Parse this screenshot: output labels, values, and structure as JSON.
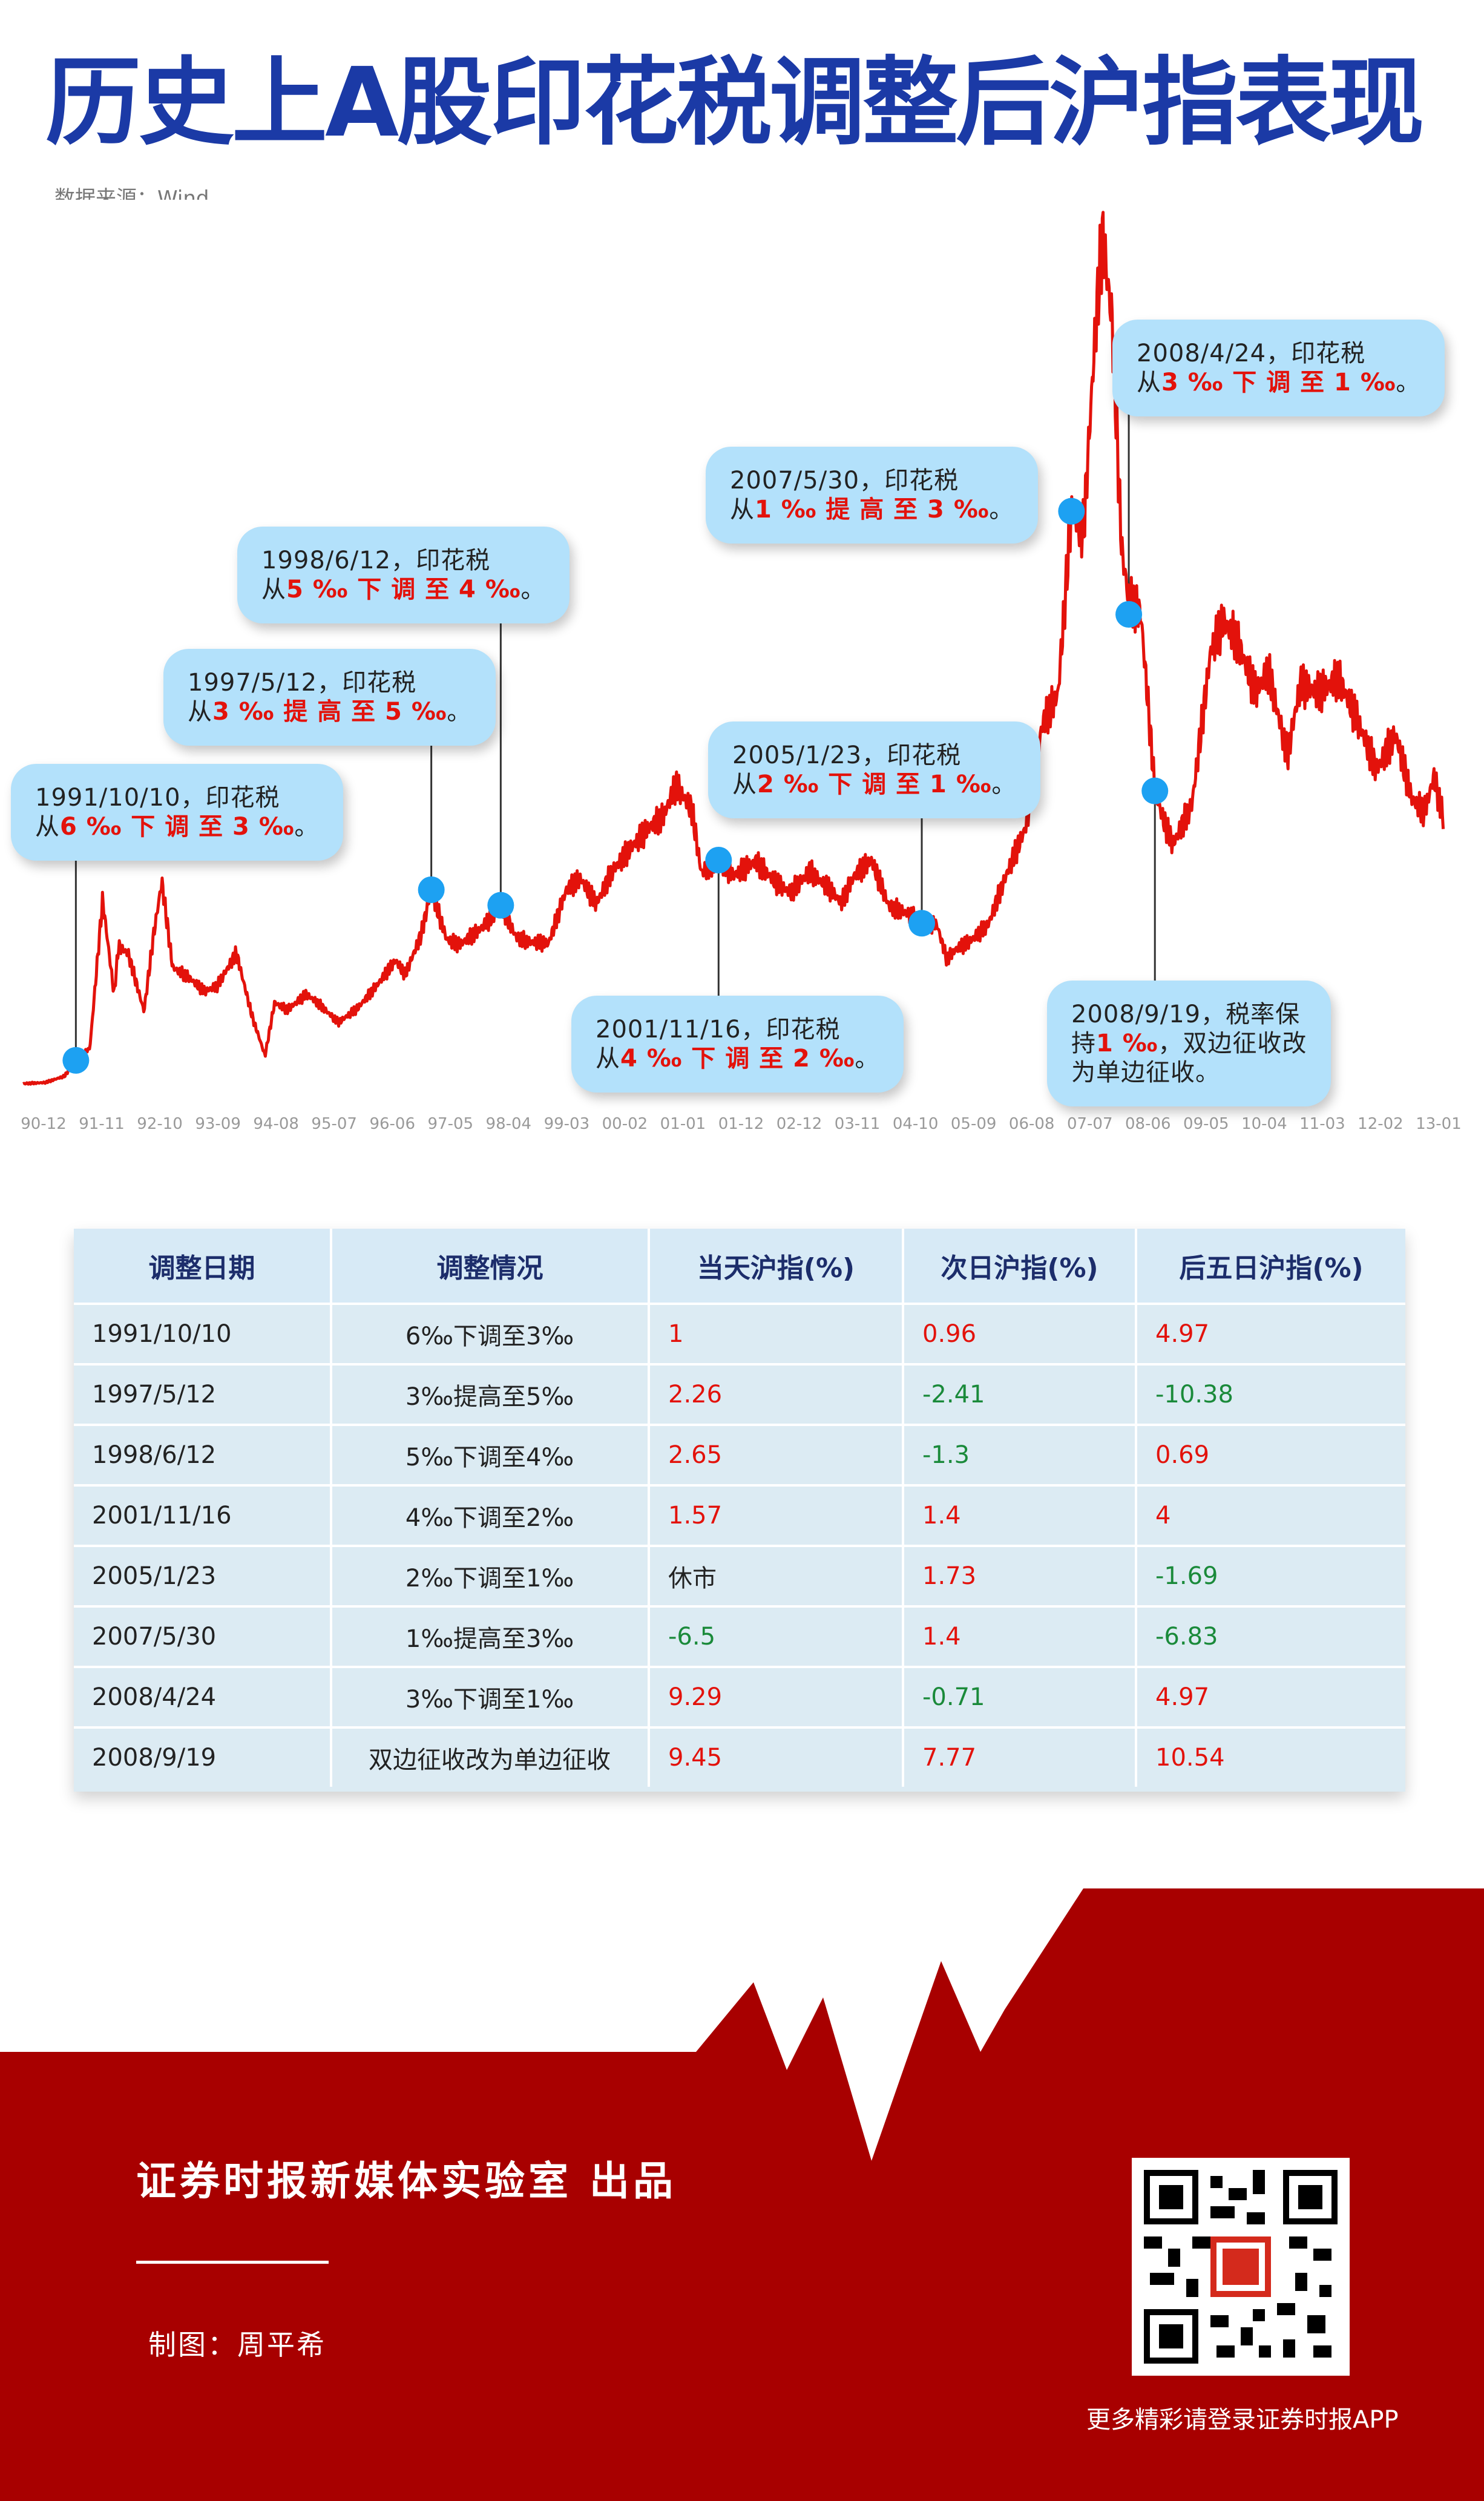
{
  "title": "历史上A股印花税调整后沪指表现",
  "source": "数据来源：Wind",
  "chart_data": {
    "type": "line",
    "xlabel": "",
    "ylabel": "",
    "x_tick_labels": [
      "90-12",
      "91-11",
      "92-10",
      "93-09",
      "94-08",
      "95-07",
      "96-06",
      "97-05",
      "98-04",
      "99-03",
      "00-02",
      "01-01",
      "01-12",
      "02-12",
      "03-11",
      "04-10",
      "05-09",
      "06-08",
      "07-07",
      "08-06",
      "09-05",
      "10-04",
      "11-03",
      "12-02",
      "13-01"
    ],
    "ylim": [
      0,
      6300
    ],
    "series": [
      {
        "x": [
          1990.95,
          1991.3,
          1991.6,
          1991.78,
          1992.0,
          1992.2,
          1992.38,
          1992.45,
          1992.6,
          1992.85,
          1993.0,
          1993.13,
          1993.3,
          1993.55,
          1993.8,
          1994.0,
          1994.3,
          1994.55,
          1994.75,
          1994.9,
          1995.1,
          1995.4,
          1995.6,
          1995.9,
          1996.2,
          1996.5,
          1996.8,
          1996.95,
          1997.2,
          1997.36,
          1997.6,
          1997.8,
          1998.1,
          1998.3,
          1998.45,
          1998.7,
          1998.9,
          1999.2,
          1999.48,
          1999.7,
          1999.95,
          2000.2,
          2000.5,
          2000.8,
          2001.0,
          2001.2,
          2001.45,
          2001.6,
          2001.87,
          2002.1,
          2002.45,
          2002.8,
          2003.0,
          2003.3,
          2003.6,
          2003.8,
          2004.0,
          2004.27,
          2004.55,
          2004.8,
          2005.05,
          2005.3,
          2005.45,
          2005.6,
          2005.8,
          2006.1,
          2006.4,
          2006.7,
          2006.95,
          2007.2,
          2007.41,
          2007.6,
          2007.79,
          2007.9,
          2008.05,
          2008.2,
          2008.31,
          2008.5,
          2008.72,
          2008.85,
          2009.0,
          2009.3,
          2009.6,
          2009.8,
          2010.0,
          2010.3,
          2010.5,
          2010.8,
          2011.0,
          2011.3,
          2011.6,
          2011.9,
          2012.2,
          2012.5,
          2012.75,
          2012.95,
          2013.1,
          2013.25
        ],
        "y": [
          127,
          135,
          180,
          292,
          380,
          1429,
          760,
          1100,
          1050,
          640,
          1180,
          1558,
          950,
          880,
          780,
          820,
          1050,
          600,
          325,
          700,
          650,
          760,
          690,
          560,
          660,
          820,
          1000,
          900,
          1180,
          1500,
          1150,
          1110,
          1210,
          1300,
          1390,
          1160,
          1130,
          1120,
          1500,
          1580,
          1400,
          1630,
          1800,
          1950,
          2020,
          2240,
          2070,
          1620,
          1710,
          1600,
          1700,
          1540,
          1480,
          1630,
          1510,
          1410,
          1600,
          1710,
          1380,
          1340,
          1275,
          1250,
          1010,
          1080,
          1130,
          1250,
          1620,
          1950,
          2670,
          2890,
          4180,
          4040,
          5500,
          6124,
          5520,
          3900,
          3560,
          3450,
          2200,
          2000,
          1820,
          2100,
          3200,
          3400,
          3277,
          2900,
          3050,
          2450,
          2950,
          2900,
          3000,
          2700,
          2350,
          2600,
          2150,
          2050,
          2300,
          2000
        ]
      }
    ],
    "events": [
      {
        "x": 1991.78,
        "y": 292
      },
      {
        "x": 1997.36,
        "y": 1500
      },
      {
        "x": 1998.45,
        "y": 1390
      },
      {
        "x": 2001.87,
        "y": 1710
      },
      {
        "x": 2005.06,
        "y": 1263
      },
      {
        "x": 2007.41,
        "y": 4180
      },
      {
        "x": 2008.31,
        "y": 3450
      },
      {
        "x": 2008.72,
        "y": 2200
      }
    ]
  },
  "callouts": [
    {
      "lead": "1991/10/10，印花税",
      "pre": "从",
      "hl": "6 ‰ 下 调 至 3 ‰",
      "post": "。"
    },
    {
      "lead": "1997/5/12，印花税",
      "pre": "从",
      "hl": "3 ‰ 提 高 至 5 ‰",
      "post": "。"
    },
    {
      "lead": "1998/6/12，印花税",
      "pre": "从",
      "hl": "5 ‰ 下 调 至 4 ‰",
      "post": "。"
    },
    {
      "lead": "2001/11/16，印花税",
      "pre": "从",
      "hl": "4 ‰ 下 调 至 2 ‰",
      "post": "。"
    },
    {
      "lead": "2005/1/23，印花税",
      "pre": "从",
      "hl": "2 ‰ 下 调 至 1 ‰",
      "post": "。"
    },
    {
      "lead": "2007/5/30，印花税",
      "pre": "从",
      "hl": "1 ‰ 提 高 至 3 ‰",
      "post": "。"
    },
    {
      "lead": "2008/4/24，印花税",
      "pre": "从",
      "hl": "3 ‰ 下 调 至 1 ‰",
      "post": "。"
    },
    {
      "lead": "2008/9/19，税率保",
      "pre": "持",
      "hl": "1 ‰",
      "post": "，双边征收改",
      "tail": "为单边征收。"
    }
  ],
  "table": {
    "headers": [
      "调整日期",
      "调整情况",
      "当天沪指(%)",
      "次日沪指(%)",
      "后五日沪指(%)"
    ],
    "rows": [
      {
        "date": "1991/10/10",
        "change": "6‰下调至3‰",
        "d0": "1",
        "d1": "0.96",
        "d5": "4.97",
        "c0": "red",
        "c1": "red",
        "c5": "red"
      },
      {
        "date": "1997/5/12",
        "change": "3‰提高至5‰",
        "d0": "2.26",
        "d1": "-2.41",
        "d5": "-10.38",
        "c0": "red",
        "c1": "green",
        "c5": "green"
      },
      {
        "date": "1998/6/12",
        "change": "5‰下调至4‰",
        "d0": "2.65",
        "d1": "-1.3",
        "d5": "0.69",
        "c0": "red",
        "c1": "green",
        "c5": "red"
      },
      {
        "date": "2001/11/16",
        "change": "4‰下调至2‰",
        "d0": "1.57",
        "d1": "1.4",
        "d5": "4",
        "c0": "red",
        "c1": "red",
        "c5": "red"
      },
      {
        "date": "2005/1/23",
        "change": "2‰下调至1‰",
        "d0": "休市",
        "d1": "1.73",
        "d5": "-1.69",
        "c0": "black",
        "c1": "red",
        "c5": "green"
      },
      {
        "date": "2007/5/30",
        "change": "1‰提高至3‰",
        "d0": "-6.5",
        "d1": "1.4",
        "d5": "-6.83",
        "c0": "green",
        "c1": "red",
        "c5": "green"
      },
      {
        "date": "2008/4/24",
        "change": "3‰下调至1‰",
        "d0": "9.29",
        "d1": "-0.71",
        "d5": "4.97",
        "c0": "red",
        "c1": "green",
        "c5": "red"
      },
      {
        "date": "2008/9/19",
        "change": "双边征收改为单边征收",
        "d0": "9.45",
        "d1": "7.77",
        "d5": "10.54",
        "c0": "red",
        "c1": "red",
        "c5": "red"
      }
    ]
  },
  "footer": {
    "title": "证券时报新媒体实验室  出品",
    "credit": "制图：周平希",
    "more": "更多精彩请登录证券时报APP"
  },
  "colors": {
    "title": "#1b3aa6",
    "line": "#e3120b",
    "marker": "#1da1f2",
    "callout": "#b3e1fb",
    "footer": "#a80000",
    "up": "#e3120b",
    "down": "#1a8a3a"
  }
}
